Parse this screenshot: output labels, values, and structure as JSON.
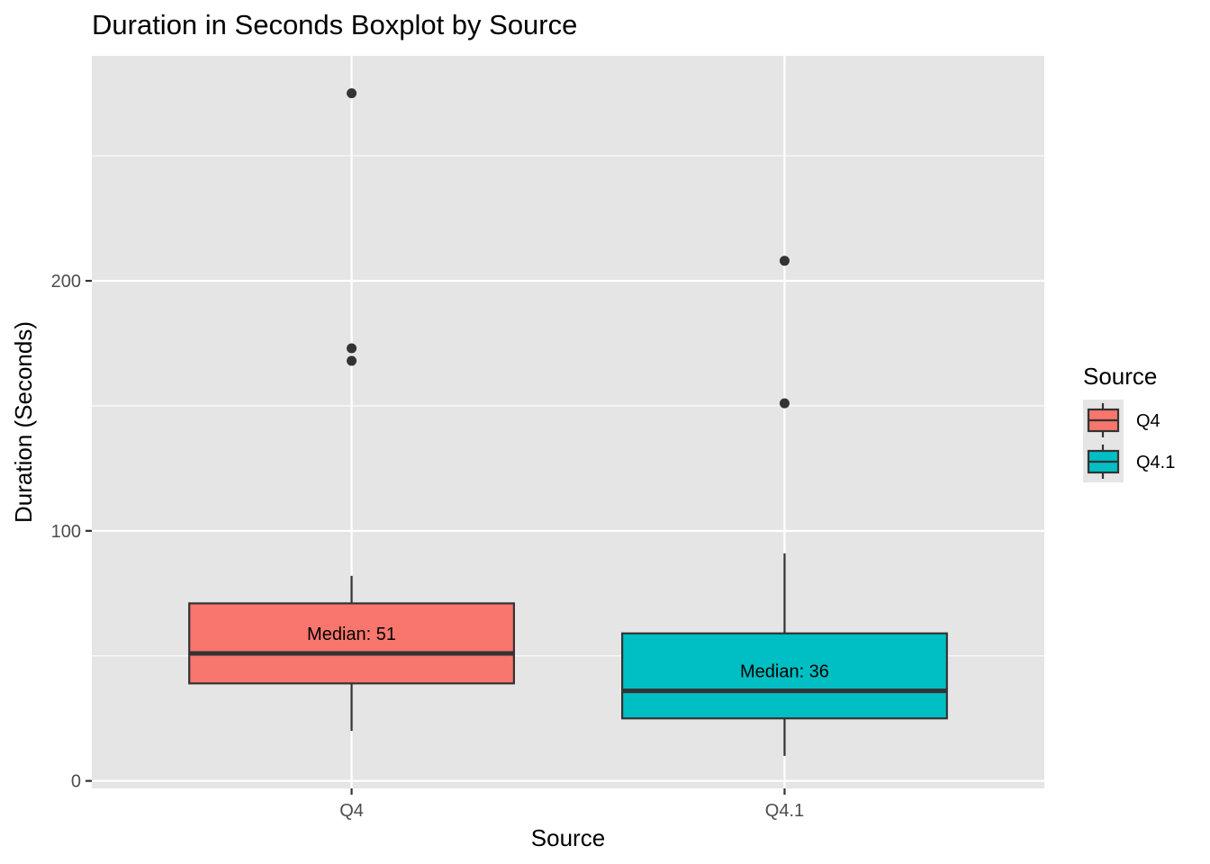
{
  "chart_data": {
    "type": "boxplot",
    "title": "Duration in Seconds Boxplot by Source",
    "xlabel": "Source",
    "ylabel": "Duration (Seconds)",
    "ylim": [
      -3,
      290
    ],
    "yticks": [
      0,
      100,
      200
    ],
    "y_tick_labels": [
      "0",
      "100",
      "200"
    ],
    "y_minor_ticks": [
      50,
      150,
      250
    ],
    "categories": [
      "Q4",
      "Q4.1"
    ],
    "grid": true,
    "legend": {
      "title": "Source",
      "placement": "right",
      "entries": [
        "Q4",
        "Q4.1"
      ]
    },
    "series": [
      {
        "category": "Q4",
        "color": "#F8766D",
        "whisker_low": 20,
        "q1": 39,
        "median": 51,
        "q3": 71,
        "whisker_high": 82,
        "outliers": [
          275,
          173,
          168
        ],
        "median_label": "Median: 51"
      },
      {
        "category": "Q4.1",
        "color": "#00BFC4",
        "whisker_low": 10,
        "q1": 25,
        "median": 36,
        "q3": 59,
        "whisker_high": 91,
        "outliers": [
          208,
          151
        ],
        "median_label": "Median: 36"
      }
    ]
  }
}
